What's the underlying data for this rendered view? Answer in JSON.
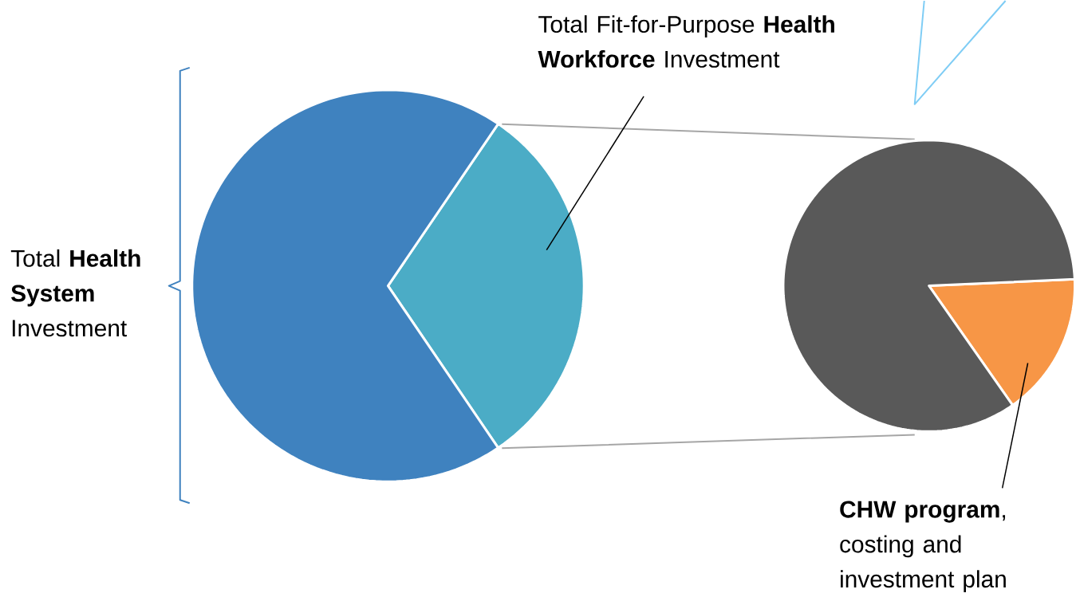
{
  "chart_data": [
    {
      "type": "pie",
      "categories": [
        null,
        "Total Fit-for-Purpose **Health Workforce** Investment"
      ],
      "values": [
        69,
        31
      ],
      "colors": [
        "#3f82bf",
        "#4bacc6"
      ],
      "annotations": [
        "Total **Health System** Investment"
      ]
    },
    {
      "type": "pie",
      "categories": [
        null,
        "**CHW program**, costing and investment plan"
      ],
      "values": [
        84,
        16
      ],
      "colors": [
        "#595959",
        "#f79646"
      ]
    }
  ]
}
